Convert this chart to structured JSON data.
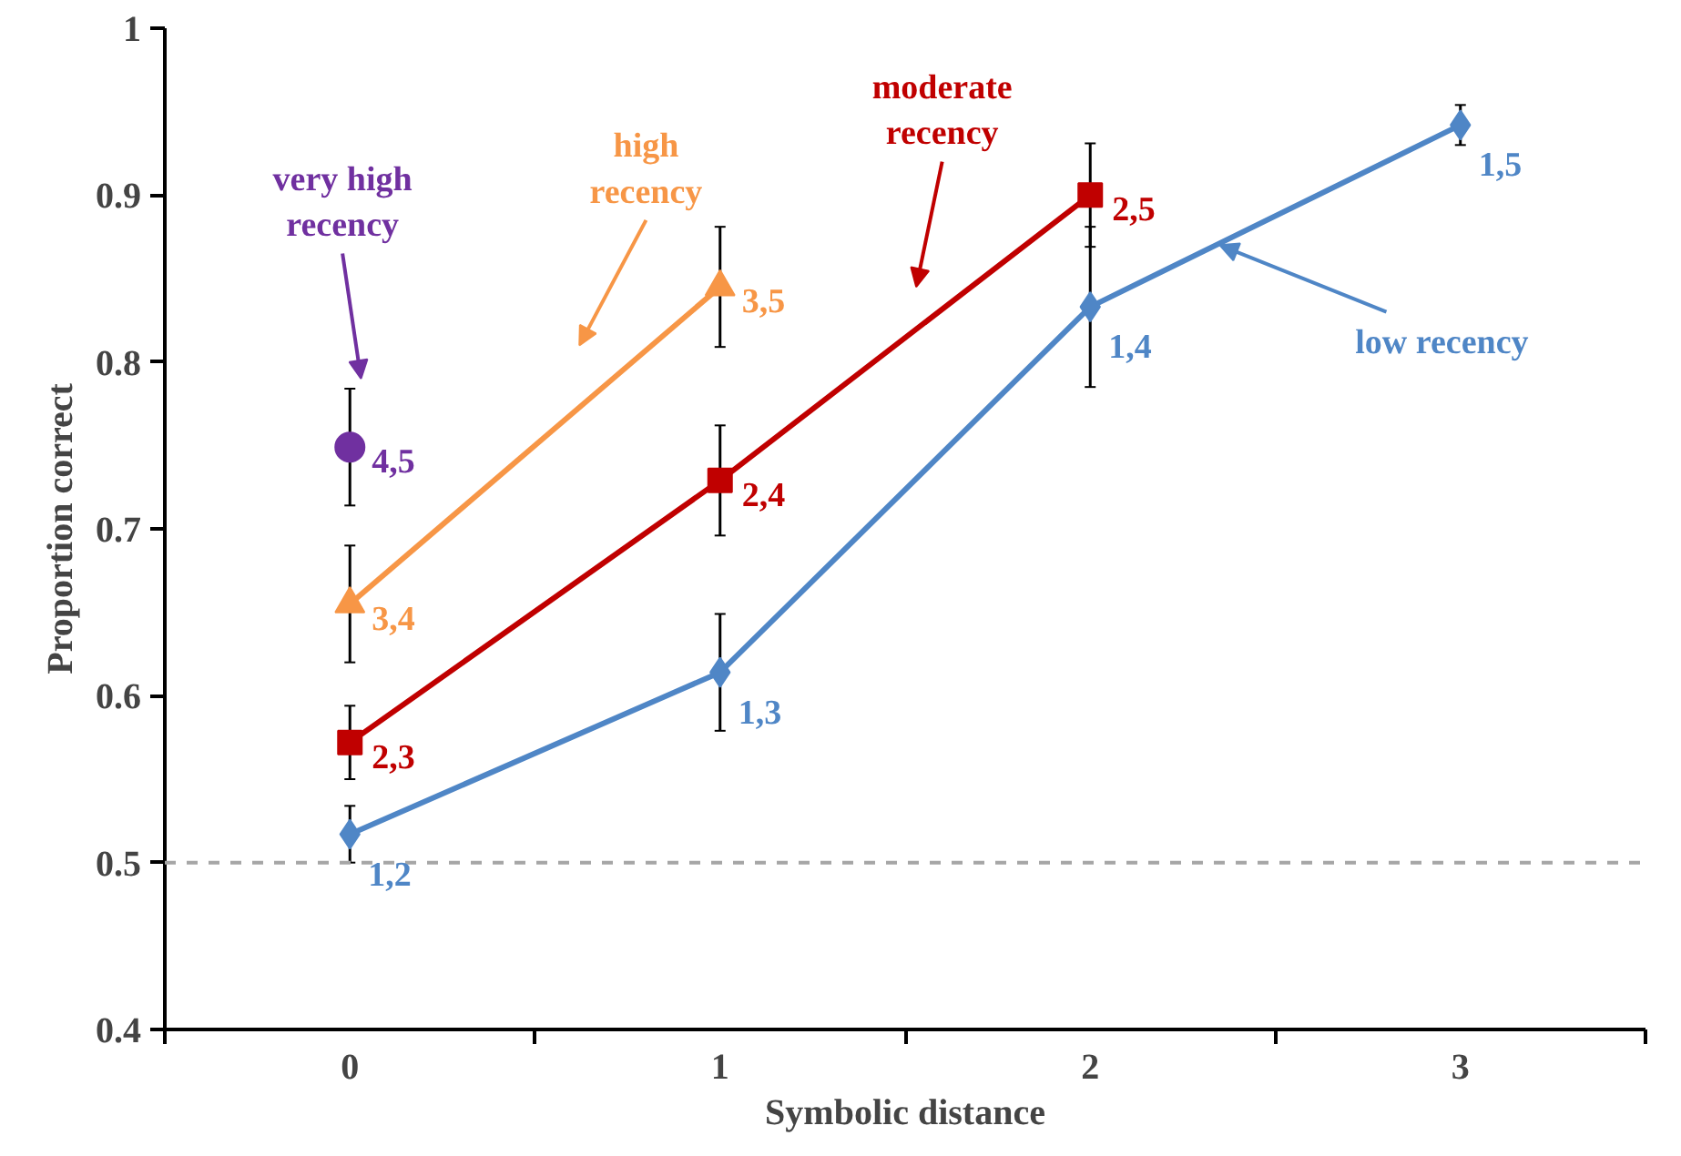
{
  "chart_data": {
    "type": "line",
    "xlabel": "Symbolic distance",
    "ylabel": "Proportion correct",
    "x": [
      0,
      1,
      2,
      3
    ],
    "xlim": [
      -0.5,
      3.5
    ],
    "xticks": [
      {
        "value": -0.5,
        "label": null
      },
      {
        "value": 0,
        "label": "0"
      },
      {
        "value": 0.5,
        "label": null
      },
      {
        "value": 1,
        "label": "1"
      },
      {
        "value": 1.5,
        "label": null
      },
      {
        "value": 2,
        "label": "2"
      },
      {
        "value": 2.5,
        "label": null
      },
      {
        "value": 3,
        "label": "3"
      },
      {
        "value": 3.5,
        "label": null
      }
    ],
    "ylim": [
      0.4,
      1
    ],
    "yticks": [
      {
        "value": 0.4,
        "label": "0.4"
      },
      {
        "value": 0.5,
        "label": "0.5"
      },
      {
        "value": 0.6,
        "label": "0.6"
      },
      {
        "value": 0.7,
        "label": "0.7"
      },
      {
        "value": 0.8,
        "label": "0.8"
      },
      {
        "value": 0.9,
        "label": "0.9"
      },
      {
        "value": 1,
        "label": "1"
      }
    ],
    "grid": false,
    "line_style": "solid",
    "series": [
      {
        "name": "low recency",
        "color": "#4f86c6",
        "marker": "diamond",
        "values": [
          0.517,
          0.614,
          0.833,
          0.942
        ],
        "errors": [
          0.017,
          0.035,
          0.048,
          0.012
        ]
      },
      {
        "name": "moderate\nrecency",
        "color": "#c00000",
        "marker": "square",
        "values": [
          0.572,
          0.729,
          0.9,
          null
        ],
        "errors": [
          0.022,
          0.033,
          0.031,
          null
        ]
      },
      {
        "name": "high\nrecency",
        "color": "#f79646",
        "marker": "triangle",
        "values": [
          0.655,
          0.845,
          null,
          null
        ],
        "errors": [
          0.035,
          0.036,
          null,
          null
        ]
      },
      {
        "name": "very high\nrecency",
        "color": "#7030a0",
        "marker": "circle",
        "values": [
          0.749,
          null,
          null,
          null
        ],
        "errors": [
          0.035,
          null,
          null,
          null
        ]
      }
    ],
    "annotations": [
      {
        "text": "1,2",
        "x": 0,
        "y": 0.517
      },
      {
        "text": "1,3",
        "x": 1,
        "y": 0.614
      },
      {
        "text": "1,4",
        "x": 2,
        "y": 0.833
      },
      {
        "text": "1,5",
        "x": 3,
        "y": 0.942
      },
      {
        "text": "2,3",
        "x": 0,
        "y": 0.572
      },
      {
        "text": "2,4",
        "x": 1,
        "y": 0.729
      },
      {
        "text": "2,5",
        "x": 2,
        "y": 0.9
      },
      {
        "text": "3,4",
        "x": 0,
        "y": 0.655
      },
      {
        "text": "3,5",
        "x": 1,
        "y": 0.845
      },
      {
        "text": "4,5",
        "x": 0,
        "y": 0.749
      }
    ],
    "ref_lines": [
      {
        "axis": "y",
        "value": 0.5,
        "label": null,
        "color": "#a6a6a6",
        "line_style": "dashed"
      }
    ]
  }
}
